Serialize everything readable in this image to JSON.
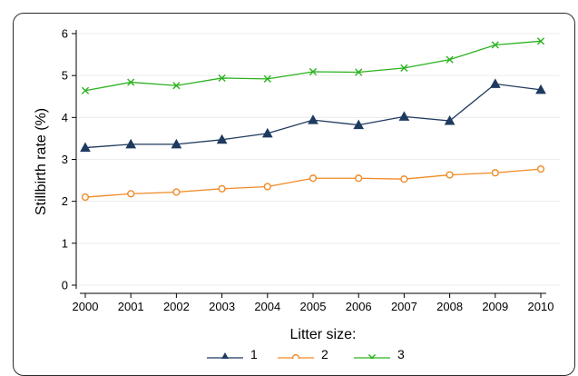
{
  "chart_data": {
    "type": "line",
    "title": "",
    "xlabel": "",
    "ylabel": "Stillbirth rate (%)",
    "x": [
      2000,
      2001,
      2002,
      2003,
      2004,
      2005,
      2006,
      2007,
      2008,
      2009,
      2010
    ],
    "xlim": [
      2000,
      2010
    ],
    "ylim": [
      0,
      6
    ],
    "yticks": [
      0,
      1,
      2,
      3,
      4,
      5,
      6
    ],
    "grid": true,
    "legend": {
      "title": "Litter size:",
      "position": "bottom"
    },
    "series": [
      {
        "name": "1",
        "color": "#1f3a5f",
        "marker": "triangle",
        "values": [
          3.28,
          3.36,
          3.36,
          3.47,
          3.62,
          3.94,
          3.82,
          4.02,
          3.92,
          4.8,
          4.66
        ]
      },
      {
        "name": "2",
        "color": "#f08a24",
        "marker": "circle",
        "values": [
          2.1,
          2.18,
          2.22,
          2.3,
          2.35,
          2.55,
          2.55,
          2.53,
          2.63,
          2.68,
          2.77
        ]
      },
      {
        "name": "3",
        "color": "#2bb21f",
        "marker": "x",
        "values": [
          4.64,
          4.84,
          4.76,
          4.94,
          4.92,
          5.09,
          5.08,
          5.18,
          5.38,
          5.73,
          5.82
        ]
      }
    ]
  }
}
